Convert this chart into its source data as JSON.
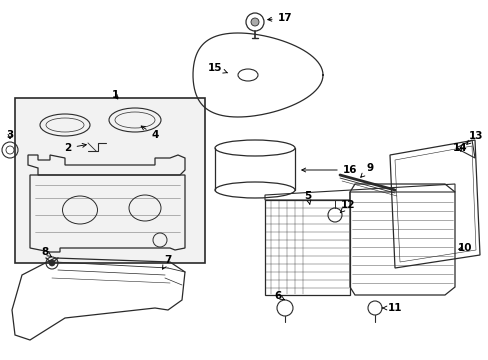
{
  "bg_color": "#ffffff",
  "line_color": "#2a2a2a",
  "label_color": "#000000",
  "fig_width": 4.89,
  "fig_height": 3.6,
  "dpi": 100,
  "label_fontsize": 7.5,
  "lw": 0.9
}
